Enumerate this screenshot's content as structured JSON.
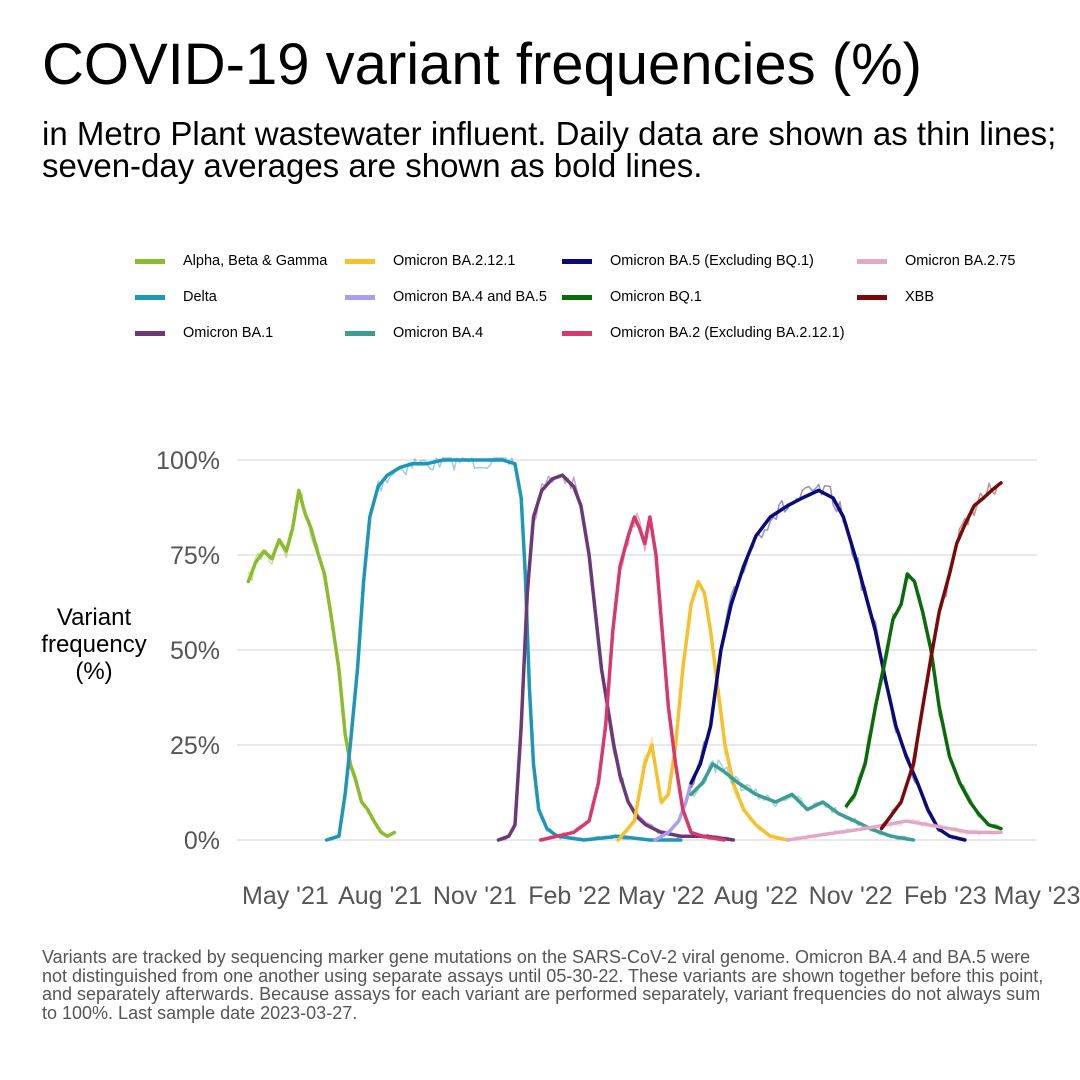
{
  "title": "COVID-19 variant frequencies (%)",
  "subtitle": "in Metro Plant wastewater influent. Daily data are shown as thin lines; seven-day averages are shown as bold lines.",
  "note": "Variants are tracked by sequencing marker gene mutations on the SARS-CoV-2 viral genome. Omicron BA.4 and BA.5 were not distinguished from one another using separate assays until 05-30-22. These variants are shown together before this point, and separately afterwards. Because assays for each variant are performed separately, variant frequencies do not always sum to 100%. Last sample date 2023-03-27.",
  "chart_data": {
    "type": "line",
    "title": "COVID-19 variant frequencies (%)",
    "ylabel": "Variant frequency (%)",
    "xlabel": "",
    "x_range": [
      "2021-03-15",
      "2023-05-01"
    ],
    "ylim": [
      0,
      100
    ],
    "y_ticks": [
      0,
      25,
      50,
      75,
      100
    ],
    "y_tick_labels": [
      "0%",
      "25%",
      "50%",
      "75%",
      "100%"
    ],
    "x_ticks": [
      "2021-05-01",
      "2021-08-01",
      "2021-11-01",
      "2022-02-01",
      "2022-05-01",
      "2022-08-01",
      "2022-11-01",
      "2023-02-01",
      "2023-05-01"
    ],
    "x_tick_labels": [
      "May '21",
      "Aug '21",
      "Nov '21",
      "Feb '22",
      "May '22",
      "Aug '22",
      "Nov '22",
      "Feb '23",
      "May '23"
    ],
    "grid": "horizontal",
    "legend_position": "top",
    "series": [
      {
        "name": "Alpha, Beta & Gamma",
        "color": "#8CBB2E",
        "points": [
          [
            "2021-03-26",
            68
          ],
          [
            "2021-04-02",
            73
          ],
          [
            "2021-04-10",
            76
          ],
          [
            "2021-04-18",
            74
          ],
          [
            "2021-04-25",
            79
          ],
          [
            "2021-05-02",
            76
          ],
          [
            "2021-05-08",
            82
          ],
          [
            "2021-05-14",
            92
          ],
          [
            "2021-05-20",
            86
          ],
          [
            "2021-05-26",
            82
          ],
          [
            "2021-06-01",
            76
          ],
          [
            "2021-06-08",
            70
          ],
          [
            "2021-06-15",
            58
          ],
          [
            "2021-06-22",
            45
          ],
          [
            "2021-06-28",
            28
          ],
          [
            "2021-07-03",
            20
          ],
          [
            "2021-07-08",
            16
          ],
          [
            "2021-07-14",
            10
          ],
          [
            "2021-07-20",
            8
          ],
          [
            "2021-07-26",
            5
          ],
          [
            "2021-08-02",
            2
          ],
          [
            "2021-08-08",
            1
          ],
          [
            "2021-08-15",
            2
          ]
        ]
      },
      {
        "name": "Delta",
        "color": "#1F96B8",
        "points": [
          [
            "2021-06-10",
            0
          ],
          [
            "2021-06-22",
            1
          ],
          [
            "2021-06-28",
            12
          ],
          [
            "2021-07-03",
            25
          ],
          [
            "2021-07-10",
            45
          ],
          [
            "2021-07-16",
            68
          ],
          [
            "2021-07-22",
            85
          ],
          [
            "2021-07-30",
            93
          ],
          [
            "2021-08-08",
            96
          ],
          [
            "2021-08-20",
            98
          ],
          [
            "2021-09-01",
            99
          ],
          [
            "2021-09-15",
            99
          ],
          [
            "2021-10-01",
            100
          ],
          [
            "2021-10-20",
            100
          ],
          [
            "2021-11-10",
            100
          ],
          [
            "2021-11-28",
            100
          ],
          [
            "2021-12-10",
            99
          ],
          [
            "2021-12-16",
            90
          ],
          [
            "2021-12-20",
            70
          ],
          [
            "2021-12-24",
            40
          ],
          [
            "2021-12-28",
            20
          ],
          [
            "2022-01-02",
            8
          ],
          [
            "2022-01-10",
            3
          ],
          [
            "2022-01-20",
            1
          ],
          [
            "2022-02-15",
            0
          ],
          [
            "2022-03-20",
            1
          ],
          [
            "2022-04-20",
            0
          ],
          [
            "2022-05-20",
            0
          ]
        ]
      },
      {
        "name": "Omicron BA.1",
        "color": "#6B3878",
        "points": [
          [
            "2021-11-24",
            0
          ],
          [
            "2021-12-04",
            1
          ],
          [
            "2021-12-10",
            4
          ],
          [
            "2021-12-16",
            30
          ],
          [
            "2021-12-22",
            65
          ],
          [
            "2021-12-28",
            85
          ],
          [
            "2022-01-05",
            92
          ],
          [
            "2022-01-15",
            95
          ],
          [
            "2022-01-25",
            96
          ],
          [
            "2022-02-05",
            93
          ],
          [
            "2022-02-12",
            88
          ],
          [
            "2022-02-20",
            75
          ],
          [
            "2022-02-26",
            60
          ],
          [
            "2022-03-04",
            45
          ],
          [
            "2022-03-10",
            35
          ],
          [
            "2022-03-16",
            25
          ],
          [
            "2022-03-22",
            17
          ],
          [
            "2022-03-30",
            10
          ],
          [
            "2022-04-08",
            6
          ],
          [
            "2022-04-16",
            4
          ],
          [
            "2022-05-01",
            2
          ],
          [
            "2022-05-20",
            1
          ],
          [
            "2022-06-15",
            1
          ],
          [
            "2022-07-10",
            0
          ]
        ]
      },
      {
        "name": "Omicron BA.2.12.1",
        "color": "#F6C12D",
        "points": [
          [
            "2022-03-20",
            0
          ],
          [
            "2022-04-05",
            5
          ],
          [
            "2022-04-15",
            20
          ],
          [
            "2022-04-22",
            25
          ],
          [
            "2022-05-01",
            10
          ],
          [
            "2022-05-08",
            12
          ],
          [
            "2022-05-15",
            25
          ],
          [
            "2022-05-22",
            45
          ],
          [
            "2022-05-30",
            62
          ],
          [
            "2022-06-06",
            68
          ],
          [
            "2022-06-12",
            65
          ],
          [
            "2022-06-18",
            55
          ],
          [
            "2022-06-25",
            40
          ],
          [
            "2022-07-02",
            25
          ],
          [
            "2022-07-10",
            15
          ],
          [
            "2022-07-20",
            8
          ],
          [
            "2022-08-01",
            4
          ],
          [
            "2022-08-15",
            1
          ],
          [
            "2022-09-01",
            0
          ]
        ]
      },
      {
        "name": "Omicron BA.4 and BA.5",
        "color": "#A99EF2",
        "points": [
          [
            "2022-04-25",
            0
          ],
          [
            "2022-05-08",
            2
          ],
          [
            "2022-05-18",
            5
          ],
          [
            "2022-05-25",
            10
          ],
          [
            "2022-05-30",
            15
          ]
        ]
      },
      {
        "name": "Omicron BA.4",
        "color": "#3A9E95",
        "points": [
          [
            "2022-05-30",
            12
          ],
          [
            "2022-06-10",
            15
          ],
          [
            "2022-06-20",
            20
          ],
          [
            "2022-07-01",
            18
          ],
          [
            "2022-07-15",
            15
          ],
          [
            "2022-08-01",
            12
          ],
          [
            "2022-08-20",
            10
          ],
          [
            "2022-09-05",
            12
          ],
          [
            "2022-09-20",
            8
          ],
          [
            "2022-10-05",
            10
          ],
          [
            "2022-10-20",
            7
          ],
          [
            "2022-11-05",
            5
          ],
          [
            "2022-11-20",
            3
          ],
          [
            "2022-12-10",
            1
          ],
          [
            "2023-01-01",
            0
          ]
        ]
      },
      {
        "name": "Omicron BA.5 (Excluding BQ.1)",
        "color": "#0A0A7A",
        "points": [
          [
            "2022-05-30",
            15
          ],
          [
            "2022-06-08",
            20
          ],
          [
            "2022-06-18",
            30
          ],
          [
            "2022-06-28",
            50
          ],
          [
            "2022-07-08",
            62
          ],
          [
            "2022-07-20",
            72
          ],
          [
            "2022-08-01",
            80
          ],
          [
            "2022-08-15",
            85
          ],
          [
            "2022-09-01",
            88
          ],
          [
            "2022-09-15",
            90
          ],
          [
            "2022-10-01",
            92
          ],
          [
            "2022-10-15",
            90
          ],
          [
            "2022-10-25",
            85
          ],
          [
            "2022-11-05",
            75
          ],
          [
            "2022-11-15",
            65
          ],
          [
            "2022-11-25",
            55
          ],
          [
            "2022-12-05",
            42
          ],
          [
            "2022-12-15",
            30
          ],
          [
            "2022-12-25",
            22
          ],
          [
            "2023-01-05",
            15
          ],
          [
            "2023-01-15",
            8
          ],
          [
            "2023-01-25",
            3
          ],
          [
            "2023-02-05",
            1
          ],
          [
            "2023-02-20",
            0
          ]
        ]
      },
      {
        "name": "Omicron BQ.1",
        "color": "#0B6B0B",
        "points": [
          [
            "2022-10-28",
            9
          ],
          [
            "2022-11-05",
            12
          ],
          [
            "2022-11-15",
            20
          ],
          [
            "2022-11-25",
            35
          ],
          [
            "2022-12-05",
            48
          ],
          [
            "2022-12-12",
            58
          ],
          [
            "2022-12-20",
            62
          ],
          [
            "2022-12-26",
            70
          ],
          [
            "2023-01-02",
            68
          ],
          [
            "2023-01-10",
            60
          ],
          [
            "2023-01-18",
            50
          ],
          [
            "2023-01-26",
            35
          ],
          [
            "2023-02-05",
            22
          ],
          [
            "2023-02-15",
            15
          ],
          [
            "2023-02-25",
            10
          ],
          [
            "2023-03-05",
            7
          ],
          [
            "2023-03-15",
            4
          ],
          [
            "2023-03-27",
            3
          ]
        ]
      },
      {
        "name": "Omicron BA.2 (Excluding BA.2.12.1)",
        "color": "#D63A6D",
        "points": [
          [
            "2022-01-04",
            0
          ],
          [
            "2022-01-20",
            1
          ],
          [
            "2022-02-05",
            2
          ],
          [
            "2022-02-20",
            5
          ],
          [
            "2022-03-01",
            15
          ],
          [
            "2022-03-08",
            30
          ],
          [
            "2022-03-15",
            55
          ],
          [
            "2022-03-22",
            72
          ],
          [
            "2022-03-30",
            80
          ],
          [
            "2022-04-05",
            85
          ],
          [
            "2022-04-10",
            82
          ],
          [
            "2022-04-15",
            78
          ],
          [
            "2022-04-20",
            85
          ],
          [
            "2022-04-26",
            75
          ],
          [
            "2022-05-02",
            55
          ],
          [
            "2022-05-08",
            35
          ],
          [
            "2022-05-15",
            20
          ],
          [
            "2022-05-22",
            8
          ],
          [
            "2022-05-30",
            2
          ],
          [
            "2022-06-10",
            1
          ],
          [
            "2022-07-01",
            0
          ]
        ]
      },
      {
        "name": "Omicron BA.2.75",
        "color": "#E2A9C6",
        "points": [
          [
            "2022-09-01",
            0
          ],
          [
            "2022-09-25",
            1
          ],
          [
            "2022-10-20",
            2
          ],
          [
            "2022-11-15",
            3
          ],
          [
            "2022-12-05",
            4
          ],
          [
            "2022-12-25",
            5
          ],
          [
            "2023-01-15",
            4
          ],
          [
            "2023-02-05",
            3
          ],
          [
            "2023-02-25",
            2
          ],
          [
            "2023-03-15",
            2
          ],
          [
            "2023-03-27",
            2
          ]
        ]
      },
      {
        "name": "XBB",
        "color": "#7A0A0A",
        "points": [
          [
            "2022-12-01",
            3
          ],
          [
            "2022-12-20",
            10
          ],
          [
            "2023-01-01",
            20
          ],
          [
            "2023-01-10",
            35
          ],
          [
            "2023-01-18",
            48
          ],
          [
            "2023-01-26",
            60
          ],
          [
            "2023-02-05",
            70
          ],
          [
            "2023-02-12",
            78
          ],
          [
            "2023-02-20",
            83
          ],
          [
            "2023-03-01",
            88
          ],
          [
            "2023-03-10",
            90
          ],
          [
            "2023-03-18",
            92
          ],
          [
            "2023-03-27",
            94
          ]
        ]
      }
    ]
  }
}
